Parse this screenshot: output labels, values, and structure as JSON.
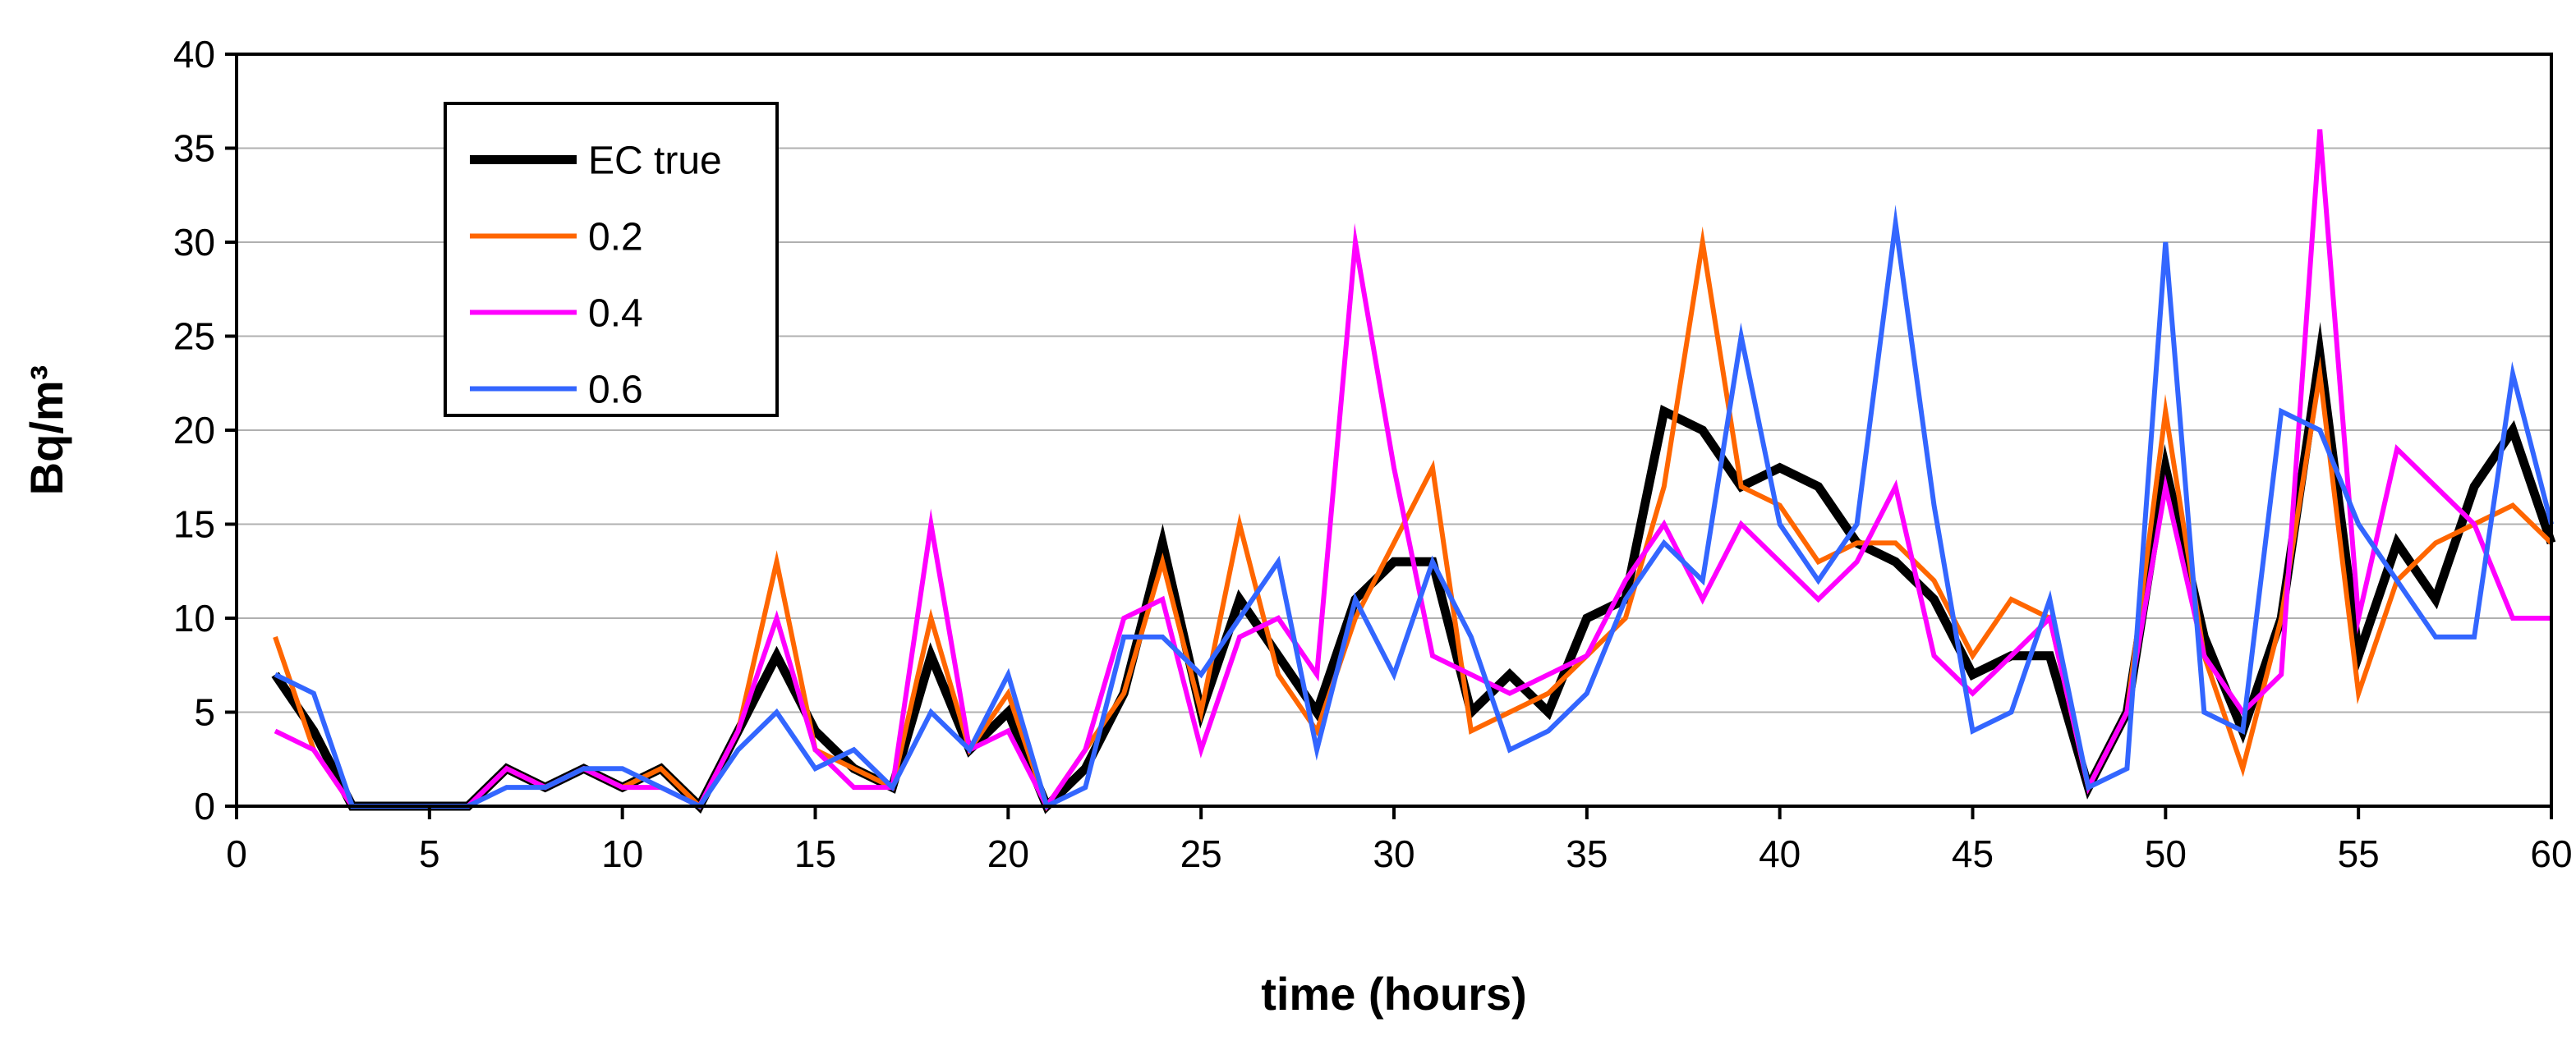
{
  "chart_data": {
    "type": "line",
    "title": "",
    "xlabel": "time (hours)",
    "ylabel": "Bq/m³",
    "xlim": [
      0,
      60
    ],
    "ylim": [
      0,
      40
    ],
    "xticks": [
      "0",
      "5",
      "10",
      "15",
      "20",
      "25",
      "30",
      "35",
      "40",
      "45",
      "50",
      "55",
      "60"
    ],
    "yticks": [
      "0",
      "5",
      "10",
      "15",
      "20",
      "25",
      "30",
      "35",
      "40"
    ],
    "grid": "horizontal",
    "legend_position": "top-left",
    "x": [
      1,
      2,
      3,
      4,
      5,
      6,
      7,
      8,
      9,
      10,
      11,
      12,
      13,
      14,
      15,
      16,
      17,
      18,
      19,
      20,
      21,
      22,
      23,
      24,
      25,
      26,
      27,
      28,
      29,
      30,
      31,
      32,
      33,
      34,
      35,
      36,
      37,
      38,
      39,
      40,
      41,
      42,
      43,
      44,
      45,
      46,
      47,
      48,
      49,
      50,
      51,
      52,
      53,
      54,
      55,
      56,
      57,
      58,
      59,
      60
    ],
    "series": [
      {
        "name": "EC true",
        "color": "#000000",
        "values": [
          7,
          4,
          0,
          0,
          0,
          0,
          2,
          1,
          2,
          1,
          2,
          0,
          4,
          8,
          4,
          2,
          1,
          8,
          3,
          5,
          0,
          2,
          6,
          14,
          5,
          11,
          8,
          5,
          11,
          13,
          13,
          5,
          7,
          5,
          10,
          11,
          21,
          20,
          17,
          18,
          17,
          14,
          13,
          11,
          7,
          8,
          8,
          1,
          5,
          18,
          9,
          4,
          10,
          24,
          8,
          14,
          11,
          17,
          20,
          14
        ]
      },
      {
        "name": "0.2",
        "color": "#ff6600",
        "values": [
          9,
          3,
          0,
          0,
          0,
          0,
          2,
          1,
          2,
          1,
          2,
          0,
          4,
          13,
          3,
          2,
          1,
          10,
          3,
          6,
          0,
          3,
          6,
          13,
          5,
          15,
          7,
          4,
          10,
          14,
          18,
          4,
          5,
          6,
          8,
          10,
          17,
          30,
          17,
          16,
          13,
          14,
          14,
          12,
          8,
          11,
          10,
          1,
          5,
          21,
          8,
          2,
          10,
          23,
          6,
          12,
          14,
          15,
          16,
          14
        ]
      },
      {
        "name": "0.4",
        "color": "#ff00ff",
        "values": [
          4,
          3,
          0,
          0,
          0,
          0,
          2,
          1,
          2,
          1,
          1,
          0,
          4,
          10,
          3,
          1,
          1,
          15,
          3,
          4,
          0,
          3,
          10,
          11,
          3,
          9,
          10,
          7,
          30,
          18,
          8,
          7,
          6,
          7,
          8,
          12,
          15,
          11,
          15,
          13,
          11,
          13,
          17,
          8,
          6,
          8,
          10,
          1,
          5,
          17,
          8,
          5,
          7,
          36,
          10,
          19,
          17,
          15,
          10,
          10
        ]
      },
      {
        "name": "0.6",
        "color": "#3366ff",
        "values": [
          7,
          6,
          0,
          0,
          0,
          0,
          1,
          1,
          2,
          2,
          1,
          0,
          3,
          5,
          2,
          3,
          1,
          5,
          3,
          7,
          0,
          1,
          9,
          9,
          7,
          10,
          13,
          3,
          11,
          7,
          13,
          9,
          3,
          4,
          6,
          11,
          14,
          12,
          25,
          15,
          12,
          15,
          31,
          16,
          4,
          5,
          11,
          1,
          2,
          30,
          5,
          4,
          21,
          20,
          15,
          12,
          9,
          9,
          23,
          15
        ]
      }
    ]
  }
}
